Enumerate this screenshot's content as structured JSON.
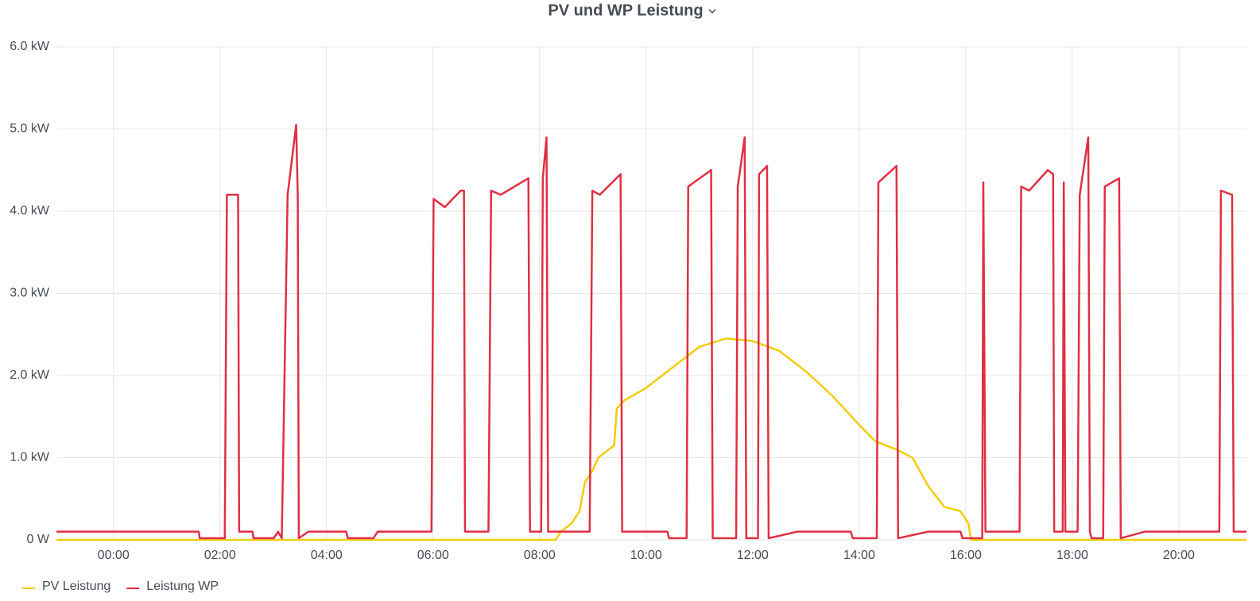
{
  "chart_data": {
    "type": "line",
    "title": "PV und WP Leistung",
    "xlim": [
      -1.07,
      21.27
    ],
    "xticks": [
      {
        "value": 0,
        "label": "00:00"
      },
      {
        "value": 2,
        "label": "02:00"
      },
      {
        "value": 4,
        "label": "04:00"
      },
      {
        "value": 6,
        "label": "06:00"
      },
      {
        "value": 8,
        "label": "08:00"
      },
      {
        "value": 10,
        "label": "10:00"
      },
      {
        "value": 12,
        "label": "12:00"
      },
      {
        "value": 14,
        "label": "14:00"
      },
      {
        "value": 16,
        "label": "16:00"
      },
      {
        "value": 18,
        "label": "18:00"
      },
      {
        "value": 20,
        "label": "20:00"
      }
    ],
    "ylim": [
      0,
      6
    ],
    "yticks": [
      {
        "value": 0,
        "label": "0 W"
      },
      {
        "value": 1,
        "label": "1.0 kW"
      },
      {
        "value": 2,
        "label": "2.0 kW"
      },
      {
        "value": 3,
        "label": "3.0 kW"
      },
      {
        "value": 4,
        "label": "4.0 kW"
      },
      {
        "value": 5,
        "label": "5.0 kW"
      },
      {
        "value": 6,
        "label": "6.0 kW"
      }
    ],
    "grid": true,
    "legend": "bottom-left",
    "series": [
      {
        "name": "PV Leistung",
        "color": "#F2CC0C",
        "x": [
          -1.07,
          8.3,
          8.4,
          8.6,
          8.75,
          8.85,
          9.0,
          9.1,
          9.3,
          9.4,
          9.45,
          9.6,
          10.0,
          10.5,
          11.0,
          11.5,
          12.0,
          12.5,
          13.0,
          13.5,
          14.0,
          14.3,
          14.7,
          15.0,
          15.3,
          15.6,
          15.9,
          16.05,
          16.1,
          21.27
        ],
        "values": [
          0,
          0,
          0.1,
          0.2,
          0.35,
          0.7,
          0.85,
          1.0,
          1.1,
          1.15,
          1.6,
          1.7,
          1.85,
          2.1,
          2.35,
          2.45,
          2.42,
          2.3,
          2.05,
          1.75,
          1.4,
          1.2,
          1.1,
          1.0,
          0.65,
          0.4,
          0.35,
          0.2,
          0,
          0
        ]
      },
      {
        "name": "Leistung WP",
        "color": "#E02F44",
        "x": [
          -1.07,
          1.6,
          1.62,
          2.09,
          2.13,
          2.34,
          2.36,
          2.61,
          2.63,
          3.01,
          3.09,
          3.16,
          3.27,
          3.43,
          3.46,
          3.48,
          3.66,
          4.37,
          4.4,
          4.88,
          4.96,
          5.03,
          5.97,
          6.01,
          6.22,
          6.52,
          6.58,
          6.6,
          7.04,
          7.09,
          7.27,
          7.79,
          7.82,
          8.03,
          8.06,
          8.13,
          8.16,
          8.94,
          8.99,
          9.13,
          9.52,
          9.55,
          10.4,
          10.43,
          10.76,
          10.79,
          11.22,
          11.25,
          11.69,
          11.72,
          11.85,
          11.88,
          12.1,
          12.12,
          12.27,
          12.3,
          12.84,
          13.84,
          13.88,
          14.33,
          14.36,
          14.7,
          14.73,
          15.3,
          15.9,
          15.94,
          16.31,
          16.33,
          16.37,
          17.01,
          17.04,
          17.19,
          17.54,
          17.64,
          17.66,
          17.82,
          17.84,
          17.87,
          18.1,
          18.14,
          18.3,
          18.33,
          18.36,
          18.58,
          18.61,
          18.88,
          18.91,
          19.36,
          20.76,
          20.79,
          21.0,
          21.03,
          21.27
        ],
        "values": [
          0.1,
          0.1,
          0.02,
          0.02,
          4.2,
          4.2,
          0.1,
          0.1,
          0.02,
          0.02,
          0.1,
          0.02,
          4.2,
          5.05,
          4.2,
          0.02,
          0.1,
          0.1,
          0.02,
          0.02,
          0.1,
          0.1,
          0.1,
          4.15,
          4.05,
          4.25,
          4.25,
          0.1,
          0.1,
          4.25,
          4.2,
          4.4,
          0.1,
          0.1,
          4.4,
          4.9,
          0.1,
          0.1,
          4.25,
          4.2,
          4.45,
          0.1,
          0.1,
          0.02,
          0.02,
          4.3,
          4.5,
          0.02,
          0.02,
          4.3,
          4.9,
          0.02,
          0.02,
          4.45,
          4.55,
          0.02,
          0.1,
          0.1,
          0.02,
          0.02,
          4.35,
          4.55,
          0.02,
          0.1,
          0.1,
          0.02,
          0.02,
          4.35,
          0.1,
          0.1,
          4.3,
          4.25,
          4.5,
          4.45,
          0.1,
          0.1,
          4.35,
          0.1,
          0.1,
          4.2,
          4.9,
          0.1,
          0.02,
          0.02,
          4.3,
          4.4,
          0.02,
          0.1,
          0.1,
          4.25,
          4.2,
          0.1,
          0.1
        ]
      }
    ]
  }
}
